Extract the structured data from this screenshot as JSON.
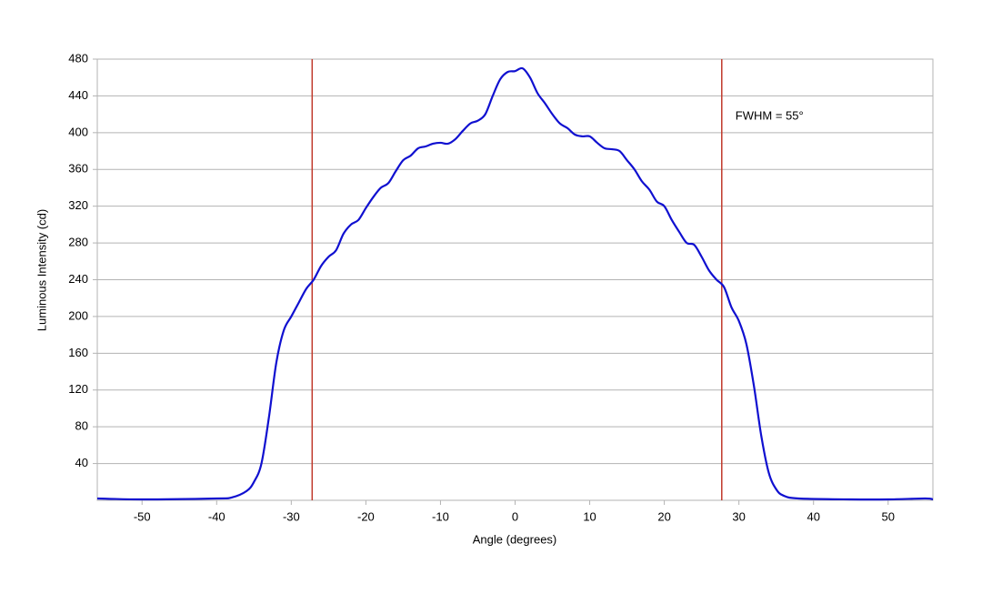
{
  "chart_data": {
    "type": "line",
    "x_label": "Angle (degrees)",
    "y_label": "Luminous Intensity (cd)",
    "annotation": "FWHM = 55°",
    "x": [
      -56,
      -50,
      -40,
      -38,
      -36,
      -35,
      -34,
      -33,
      -32,
      -31,
      -30,
      -29,
      -28,
      -27,
      -26,
      -25,
      -24,
      -23,
      -22,
      -21,
      -20,
      -19,
      -18,
      -17,
      -16,
      -15,
      -14,
      -13,
      -12,
      -11,
      -10,
      -9,
      -8,
      -7,
      -6,
      -5,
      -4,
      -3,
      -2,
      -1,
      0,
      1,
      2,
      3,
      4,
      5,
      6,
      7,
      8,
      9,
      10,
      11,
      12,
      13,
      14,
      15,
      16,
      17,
      18,
      19,
      20,
      21,
      22,
      23,
      24,
      25,
      26,
      27,
      28,
      29,
      30,
      31,
      32,
      33,
      34,
      35,
      36,
      38,
      45,
      50,
      55,
      56
    ],
    "values": [
      2,
      1,
      2,
      3,
      10,
      20,
      40,
      90,
      150,
      185,
      200,
      215,
      230,
      240,
      255,
      265,
      272,
      290,
      300,
      305,
      318,
      330,
      340,
      345,
      358,
      370,
      375,
      383,
      385,
      388,
      389,
      388,
      393,
      402,
      410,
      413,
      420,
      440,
      458,
      466,
      467,
      470,
      460,
      443,
      432,
      420,
      410,
      405,
      398,
      396,
      396,
      389,
      383,
      382,
      380,
      370,
      360,
      347,
      338,
      325,
      320,
      305,
      292,
      280,
      278,
      265,
      250,
      240,
      232,
      210,
      195,
      170,
      125,
      70,
      30,
      12,
      5,
      2,
      1,
      1,
      2,
      1
    ],
    "color": "#1010d0",
    "reference_lines": [
      -27.2,
      27.7
    ],
    "reference_color": "#c0392b",
    "xlim": [
      -56,
      56
    ],
    "xticks": [
      -50,
      -40,
      -30,
      -20,
      -10,
      0,
      10,
      20,
      30,
      40,
      50
    ],
    "ylim": [
      0,
      480
    ],
    "yticks": [
      40,
      80,
      120,
      160,
      200,
      240,
      280,
      320,
      360,
      400,
      440,
      480
    ],
    "grid": true
  }
}
